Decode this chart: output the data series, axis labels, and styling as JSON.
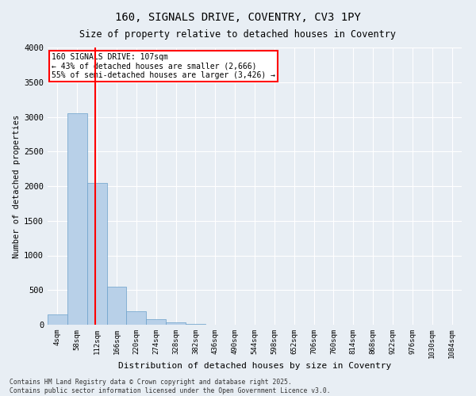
{
  "title1": "160, SIGNALS DRIVE, COVENTRY, CV3 1PY",
  "title2": "Size of property relative to detached houses in Coventry",
  "xlabel": "Distribution of detached houses by size in Coventry",
  "ylabel": "Number of detached properties",
  "bin_labels": [
    "4sqm",
    "58sqm",
    "112sqm",
    "166sqm",
    "220sqm",
    "274sqm",
    "328sqm",
    "382sqm",
    "436sqm",
    "490sqm",
    "544sqm",
    "598sqm",
    "652sqm",
    "706sqm",
    "760sqm",
    "814sqm",
    "868sqm",
    "922sqm",
    "976sqm",
    "1030sqm",
    "1084sqm"
  ],
  "bar_values": [
    150,
    3050,
    2050,
    550,
    200,
    75,
    30,
    10,
    5,
    0,
    0,
    0,
    0,
    0,
    0,
    0,
    0,
    0,
    0,
    0,
    0
  ],
  "bar_color": "#b8d0e8",
  "bar_edge_color": "#6a9fca",
  "vline_x": 1.93,
  "vline_color": "red",
  "annotation_line1": "160 SIGNALS DRIVE: 107sqm",
  "annotation_line2": "← 43% of detached houses are smaller (2,666)",
  "annotation_line3": "55% of semi-detached houses are larger (3,426) →",
  "annotation_box_color": "white",
  "annotation_box_edge": "red",
  "ylim": [
    0,
    4000
  ],
  "yticks": [
    0,
    500,
    1000,
    1500,
    2000,
    2500,
    3000,
    3500,
    4000
  ],
  "bg_color": "#e8eef4",
  "grid_color": "white",
  "footnote1": "Contains HM Land Registry data © Crown copyright and database right 2025.",
  "footnote2": "Contains public sector information licensed under the Open Government Licence v3.0."
}
